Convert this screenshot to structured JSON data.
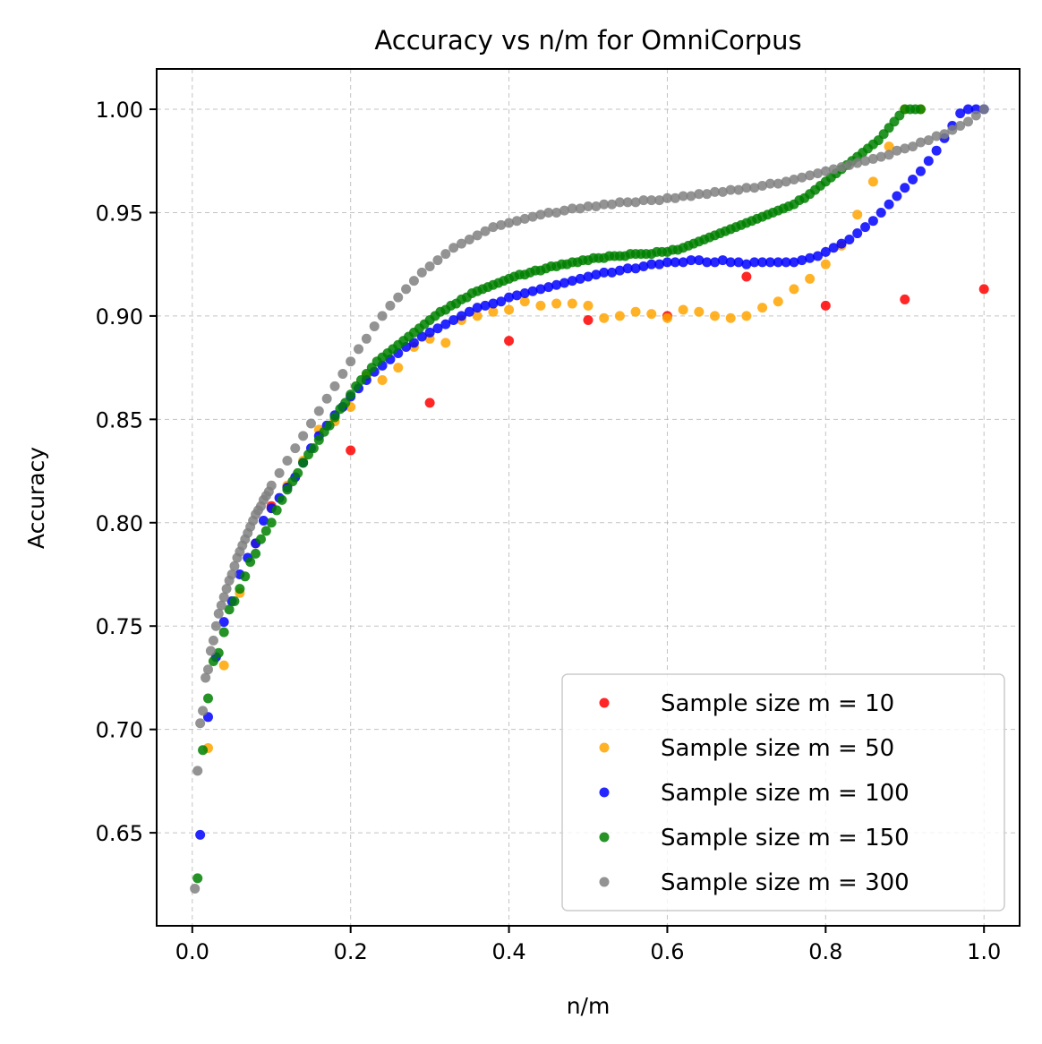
{
  "chart_data": {
    "type": "scatter",
    "title": "Accuracy vs n/m for OmniCorpus",
    "xlabel": "n/m",
    "ylabel": "Accuracy",
    "xlim": [
      -0.045,
      1.045
    ],
    "ylim": [
      0.605,
      1.0195
    ],
    "xticks": [
      0.0,
      0.2,
      0.4,
      0.6,
      0.8,
      1.0
    ],
    "xtick_labels": [
      "0.0",
      "0.2",
      "0.4",
      "0.6",
      "0.8",
      "1.0"
    ],
    "yticks": [
      0.65,
      0.7,
      0.75,
      0.8,
      0.85,
      0.9,
      0.95,
      1.0
    ],
    "ytick_labels": [
      "0.65",
      "0.70",
      "0.75",
      "0.80",
      "0.85",
      "0.90",
      "0.95",
      "1.00"
    ],
    "grid": true,
    "legend_position": "lower-right",
    "series": [
      {
        "name": "Sample size m = 10",
        "color": "#ff0000",
        "x": [
          0.1,
          0.2,
          0.3,
          0.4,
          0.5,
          0.6,
          0.7,
          0.8,
          0.9,
          1.0
        ],
        "y": [
          0.808,
          0.835,
          0.858,
          0.888,
          0.898,
          0.9,
          0.919,
          0.905,
          0.908,
          0.913
        ]
      },
      {
        "name": "Sample size m = 50",
        "color": "#ffa500",
        "x": [
          0.02,
          0.04,
          0.06,
          0.08,
          0.1,
          0.12,
          0.14,
          0.16,
          0.18,
          0.2,
          0.22,
          0.24,
          0.26,
          0.28,
          0.3,
          0.32,
          0.34,
          0.36,
          0.38,
          0.4,
          0.42,
          0.44,
          0.46,
          0.48,
          0.5,
          0.52,
          0.54,
          0.56,
          0.58,
          0.6,
          0.62,
          0.64,
          0.66,
          0.68,
          0.7,
          0.72,
          0.74,
          0.76,
          0.78,
          0.8,
          0.82,
          0.84,
          0.86,
          0.88,
          0.9,
          0.92
        ],
        "y": [
          0.691,
          0.731,
          0.766,
          0.79,
          0.807,
          0.818,
          0.83,
          0.845,
          0.849,
          0.856,
          0.871,
          0.869,
          0.875,
          0.885,
          0.889,
          0.887,
          0.898,
          0.9,
          0.902,
          0.903,
          0.907,
          0.905,
          0.906,
          0.906,
          0.905,
          0.899,
          0.9,
          0.902,
          0.901,
          0.899,
          0.903,
          0.902,
          0.9,
          0.899,
          0.9,
          0.904,
          0.907,
          0.913,
          0.918,
          0.925,
          0.934,
          0.949,
          0.965,
          0.982,
          1.0,
          1.0
        ]
      },
      {
        "name": "Sample size m = 100",
        "color": "#0000ff",
        "x": [
          0.01,
          0.02,
          0.03,
          0.04,
          0.05,
          0.06,
          0.07,
          0.08,
          0.09,
          0.1,
          0.11,
          0.12,
          0.13,
          0.14,
          0.15,
          0.16,
          0.17,
          0.18,
          0.19,
          0.2,
          0.21,
          0.22,
          0.23,
          0.24,
          0.25,
          0.26,
          0.27,
          0.28,
          0.29,
          0.3,
          0.31,
          0.32,
          0.33,
          0.34,
          0.35,
          0.36,
          0.37,
          0.38,
          0.39,
          0.4,
          0.41,
          0.42,
          0.43,
          0.44,
          0.45,
          0.46,
          0.47,
          0.48,
          0.49,
          0.5,
          0.51,
          0.52,
          0.53,
          0.54,
          0.55,
          0.56,
          0.57,
          0.58,
          0.59,
          0.6,
          0.61,
          0.62,
          0.63,
          0.64,
          0.65,
          0.66,
          0.67,
          0.68,
          0.69,
          0.7,
          0.71,
          0.72,
          0.73,
          0.74,
          0.75,
          0.76,
          0.77,
          0.78,
          0.79,
          0.8,
          0.81,
          0.82,
          0.83,
          0.84,
          0.85,
          0.86,
          0.87,
          0.88,
          0.89,
          0.9,
          0.91,
          0.92,
          0.93,
          0.94,
          0.95,
          0.96,
          0.97,
          0.98,
          0.99,
          1.0
        ],
        "y": [
          0.649,
          0.706,
          0.735,
          0.752,
          0.762,
          0.775,
          0.783,
          0.79,
          0.801,
          0.807,
          0.812,
          0.817,
          0.822,
          0.829,
          0.836,
          0.842,
          0.847,
          0.852,
          0.856,
          0.861,
          0.865,
          0.869,
          0.873,
          0.876,
          0.879,
          0.882,
          0.885,
          0.887,
          0.89,
          0.892,
          0.894,
          0.896,
          0.898,
          0.9,
          0.902,
          0.904,
          0.905,
          0.906,
          0.907,
          0.909,
          0.91,
          0.911,
          0.912,
          0.913,
          0.914,
          0.915,
          0.916,
          0.917,
          0.918,
          0.919,
          0.92,
          0.921,
          0.921,
          0.922,
          0.923,
          0.923,
          0.924,
          0.925,
          0.925,
          0.926,
          0.926,
          0.926,
          0.927,
          0.927,
          0.926,
          0.926,
          0.927,
          0.926,
          0.926,
          0.925,
          0.926,
          0.926,
          0.926,
          0.926,
          0.926,
          0.926,
          0.927,
          0.928,
          0.929,
          0.931,
          0.933,
          0.935,
          0.937,
          0.94,
          0.943,
          0.946,
          0.95,
          0.954,
          0.958,
          0.962,
          0.966,
          0.97,
          0.975,
          0.98,
          0.986,
          0.992,
          0.998,
          1.0,
          1.0,
          1.0
        ]
      },
      {
        "name": "Sample size m = 150",
        "color": "#008000",
        "x": [
          0.0067,
          0.0133,
          0.02,
          0.0267,
          0.0333,
          0.04,
          0.0467,
          0.0533,
          0.06,
          0.0667,
          0.0733,
          0.08,
          0.0867,
          0.0933,
          0.1,
          0.1067,
          0.1133,
          0.12,
          0.1267,
          0.1333,
          0.14,
          0.1467,
          0.1533,
          0.16,
          0.1667,
          0.1733,
          0.18,
          0.1867,
          0.1933,
          0.2,
          0.2067,
          0.2133,
          0.22,
          0.2267,
          0.2333,
          0.24,
          0.2467,
          0.2533,
          0.26,
          0.2667,
          0.2733,
          0.28,
          0.2867,
          0.2933,
          0.3,
          0.3067,
          0.3133,
          0.32,
          0.3267,
          0.3333,
          0.34,
          0.3467,
          0.3533,
          0.36,
          0.3667,
          0.3733,
          0.38,
          0.3867,
          0.3933,
          0.4,
          0.4067,
          0.4133,
          0.42,
          0.4267,
          0.4333,
          0.44,
          0.4467,
          0.4533,
          0.46,
          0.4667,
          0.4733,
          0.48,
          0.4867,
          0.4933,
          0.5,
          0.5067,
          0.5133,
          0.52,
          0.5267,
          0.5333,
          0.54,
          0.5467,
          0.5533,
          0.56,
          0.5667,
          0.5733,
          0.58,
          0.5867,
          0.5933,
          0.6,
          0.6067,
          0.6133,
          0.62,
          0.6267,
          0.6333,
          0.64,
          0.6467,
          0.6533,
          0.66,
          0.6667,
          0.6733,
          0.68,
          0.6867,
          0.6933,
          0.7,
          0.7067,
          0.7133,
          0.72,
          0.7267,
          0.7333,
          0.74,
          0.7467,
          0.7533,
          0.76,
          0.7667,
          0.7733,
          0.78,
          0.7867,
          0.7933,
          0.8,
          0.8067,
          0.8133,
          0.82,
          0.8267,
          0.8333,
          0.84,
          0.8467,
          0.8533,
          0.86,
          0.8667,
          0.8733,
          0.88,
          0.8867,
          0.8933,
          0.9,
          0.9067,
          0.9133,
          0.92
        ],
        "y": [
          0.628,
          0.69,
          0.715,
          0.733,
          0.737,
          0.747,
          0.758,
          0.762,
          0.768,
          0.774,
          0.781,
          0.785,
          0.792,
          0.796,
          0.8,
          0.806,
          0.811,
          0.816,
          0.82,
          0.824,
          0.829,
          0.833,
          0.836,
          0.84,
          0.844,
          0.847,
          0.851,
          0.855,
          0.858,
          0.862,
          0.866,
          0.869,
          0.872,
          0.875,
          0.878,
          0.88,
          0.882,
          0.884,
          0.886,
          0.888,
          0.89,
          0.892,
          0.894,
          0.896,
          0.898,
          0.9,
          0.902,
          0.903,
          0.905,
          0.906,
          0.908,
          0.909,
          0.911,
          0.912,
          0.913,
          0.914,
          0.915,
          0.916,
          0.917,
          0.918,
          0.919,
          0.92,
          0.92,
          0.921,
          0.922,
          0.922,
          0.923,
          0.924,
          0.924,
          0.925,
          0.925,
          0.926,
          0.926,
          0.927,
          0.927,
          0.928,
          0.928,
          0.928,
          0.929,
          0.929,
          0.929,
          0.929,
          0.93,
          0.93,
          0.93,
          0.93,
          0.93,
          0.931,
          0.931,
          0.931,
          0.932,
          0.932,
          0.933,
          0.934,
          0.935,
          0.936,
          0.937,
          0.938,
          0.939,
          0.94,
          0.941,
          0.942,
          0.943,
          0.944,
          0.945,
          0.946,
          0.947,
          0.948,
          0.949,
          0.95,
          0.951,
          0.952,
          0.953,
          0.954,
          0.956,
          0.957,
          0.959,
          0.961,
          0.963,
          0.965,
          0.967,
          0.969,
          0.971,
          0.973,
          0.975,
          0.977,
          0.979,
          0.981,
          0.983,
          0.985,
          0.988,
          0.991,
          0.994,
          0.997,
          1.0,
          1.0,
          1.0,
          1.0
        ]
      },
      {
        "name": "Sample size m = 300",
        "color": "#808080",
        "x": [
          0.0033,
          0.0067,
          0.01,
          0.0133,
          0.0167,
          0.02,
          0.0233,
          0.0267,
          0.03,
          0.0333,
          0.0367,
          0.04,
          0.0433,
          0.0467,
          0.05,
          0.0533,
          0.0567,
          0.06,
          0.0633,
          0.0667,
          0.07,
          0.0733,
          0.0767,
          0.08,
          0.0833,
          0.0867,
          0.09,
          0.0933,
          0.0967,
          0.1,
          0.11,
          0.12,
          0.13,
          0.14,
          0.15,
          0.16,
          0.17,
          0.18,
          0.19,
          0.2,
          0.21,
          0.22,
          0.23,
          0.24,
          0.25,
          0.26,
          0.27,
          0.28,
          0.29,
          0.3,
          0.31,
          0.32,
          0.33,
          0.34,
          0.35,
          0.36,
          0.37,
          0.38,
          0.39,
          0.4,
          0.41,
          0.42,
          0.43,
          0.44,
          0.45,
          0.46,
          0.47,
          0.48,
          0.49,
          0.5,
          0.51,
          0.52,
          0.53,
          0.54,
          0.55,
          0.56,
          0.57,
          0.58,
          0.59,
          0.6,
          0.61,
          0.62,
          0.63,
          0.64,
          0.65,
          0.66,
          0.67,
          0.68,
          0.69,
          0.7,
          0.71,
          0.72,
          0.73,
          0.74,
          0.75,
          0.76,
          0.77,
          0.78,
          0.79,
          0.8,
          0.81,
          0.82,
          0.83,
          0.84,
          0.85,
          0.86,
          0.87,
          0.88,
          0.89,
          0.9,
          0.91,
          0.92,
          0.93,
          0.94,
          0.95,
          0.96,
          0.97,
          0.98,
          0.99,
          1.0
        ],
        "y": [
          0.623,
          0.68,
          0.703,
          0.709,
          0.725,
          0.729,
          0.738,
          0.743,
          0.75,
          0.756,
          0.76,
          0.764,
          0.768,
          0.772,
          0.775,
          0.779,
          0.783,
          0.786,
          0.789,
          0.792,
          0.795,
          0.798,
          0.801,
          0.804,
          0.806,
          0.808,
          0.811,
          0.813,
          0.815,
          0.818,
          0.824,
          0.83,
          0.836,
          0.842,
          0.848,
          0.854,
          0.86,
          0.866,
          0.872,
          0.878,
          0.884,
          0.889,
          0.895,
          0.9,
          0.905,
          0.909,
          0.913,
          0.917,
          0.921,
          0.924,
          0.927,
          0.93,
          0.933,
          0.935,
          0.937,
          0.939,
          0.941,
          0.943,
          0.944,
          0.945,
          0.946,
          0.947,
          0.948,
          0.949,
          0.95,
          0.95,
          0.951,
          0.952,
          0.952,
          0.953,
          0.953,
          0.954,
          0.954,
          0.955,
          0.955,
          0.955,
          0.956,
          0.956,
          0.956,
          0.957,
          0.957,
          0.958,
          0.958,
          0.959,
          0.959,
          0.96,
          0.96,
          0.961,
          0.961,
          0.962,
          0.962,
          0.963,
          0.964,
          0.964,
          0.965,
          0.966,
          0.967,
          0.968,
          0.969,
          0.97,
          0.971,
          0.972,
          0.973,
          0.974,
          0.975,
          0.976,
          0.977,
          0.978,
          0.98,
          0.981,
          0.982,
          0.984,
          0.985,
          0.987,
          0.988,
          0.99,
          0.992,
          0.994,
          0.997,
          1.0
        ]
      }
    ]
  }
}
